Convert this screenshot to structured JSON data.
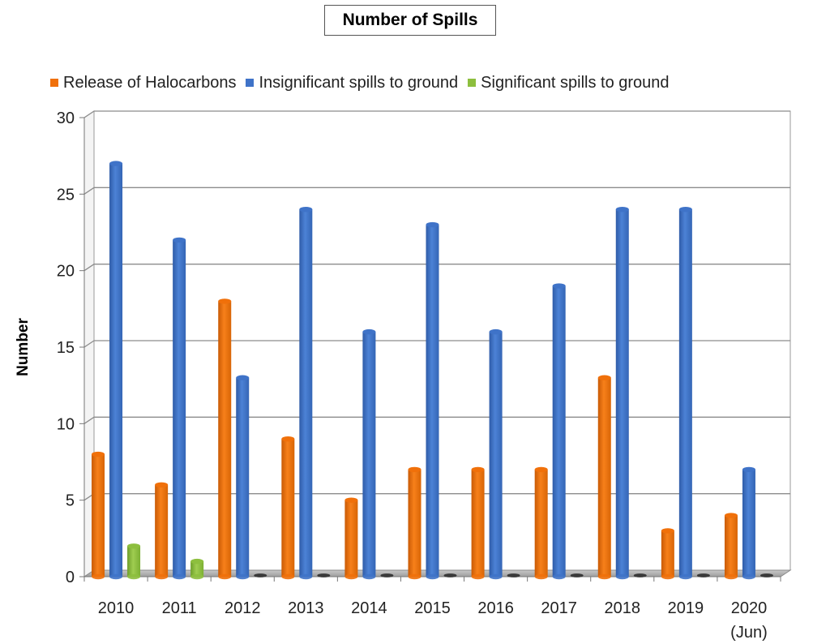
{
  "chart_data": {
    "type": "bar",
    "title": "Number of Spills",
    "xlabel": "",
    "ylabel": "Number",
    "ylim": [
      0,
      30
    ],
    "yticks": [
      0,
      5,
      10,
      15,
      20,
      25,
      30
    ],
    "grid": true,
    "legend_position": "top",
    "categories": [
      "2010",
      "2011",
      "2012",
      "2013",
      "2014",
      "2015",
      "2016",
      "2017",
      "2018",
      "2019",
      "2020\n(Jun)"
    ],
    "series": [
      {
        "name": "Release of Halocarbons",
        "color": "#F0700A",
        "values": [
          8,
          6,
          18,
          9,
          5,
          7,
          7,
          7,
          13,
          3,
          4
        ]
      },
      {
        "name": "Insignificant spills to ground",
        "color": "#3F73C8",
        "values": [
          27,
          22,
          13,
          24,
          16,
          23,
          16,
          19,
          24,
          24,
          7
        ]
      },
      {
        "name": "Significant spills to ground",
        "color": "#8DBF3E",
        "values": [
          2,
          1,
          0,
          0,
          0,
          0,
          0,
          0,
          0,
          0,
          0
        ]
      }
    ]
  }
}
